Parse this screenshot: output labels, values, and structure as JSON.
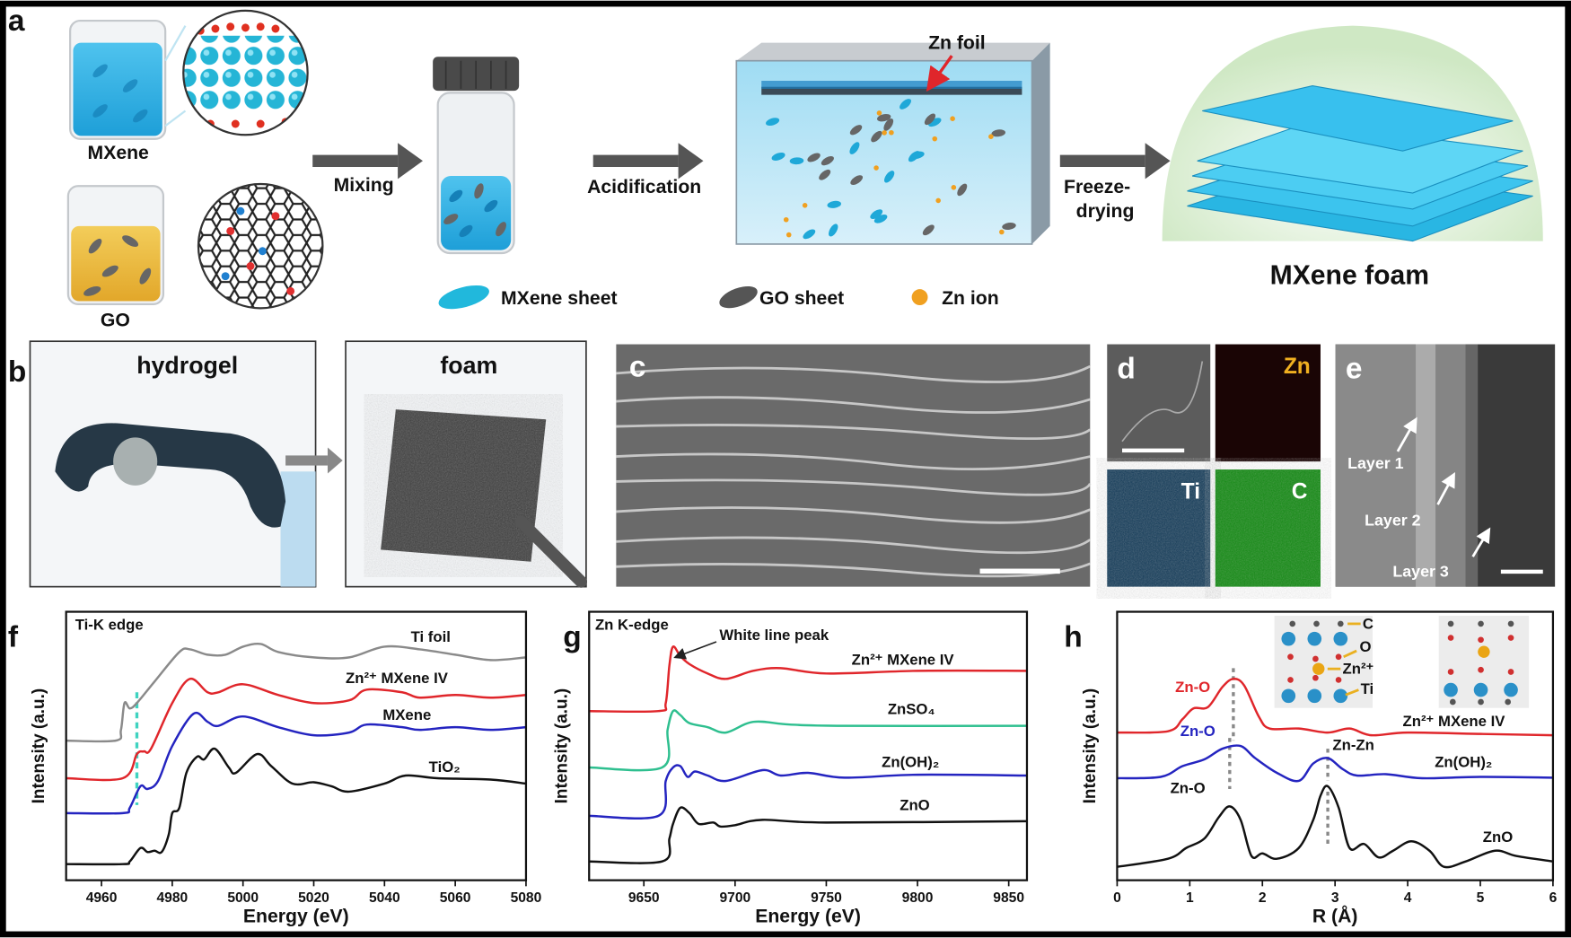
{
  "panel_labels": {
    "a": "a",
    "b": "b",
    "c": "c",
    "d": "d",
    "e": "e",
    "f": "f",
    "g": "g",
    "h": "h"
  },
  "scheme": {
    "mxene_label": "MXene",
    "go_label": "GO",
    "mixing": "Mixing",
    "acidification": "Acidification",
    "zn_foil": "Zn foil",
    "freeze_line1": "Freeze-",
    "freeze_line2": "drying",
    "foam_label": "MXene foam",
    "legend": [
      {
        "label": "MXene sheet",
        "color": "#21b8dc"
      },
      {
        "label": "GO sheet",
        "color": "#555555"
      },
      {
        "label": "Zn ion",
        "color": "#f0a020"
      }
    ]
  },
  "photos": {
    "hydrogel": "hydrogel",
    "foam": "foam"
  },
  "eds": {
    "zn": "Zn",
    "ti": "Ti",
    "c": "C",
    "zn_color": "#f0b020",
    "ti_color": "#1f6f9a",
    "c_color": "#22aa22"
  },
  "hrtem": {
    "layers": [
      "Layer 1",
      "Layer 2",
      "Layer 3"
    ]
  },
  "inset": {
    "labels": [
      "C",
      "O",
      "Zn²⁺",
      "Ti"
    ]
  },
  "chart_data": [
    {
      "id": "f",
      "type": "line",
      "title": "Ti-K edge",
      "xlabel": "Energy (eV)",
      "ylabel": "Intensity (a.u.)",
      "xlim": [
        4950,
        5080
      ],
      "xticks": [
        4960,
        4980,
        5000,
        5020,
        5040,
        5060,
        5080
      ],
      "yticks": "none",
      "grid": false,
      "reference_line": {
        "x": 4970,
        "color": "#3fd3c0",
        "style": "dashed"
      },
      "series": [
        {
          "name": "Ti foil",
          "color": "#8a8a8a",
          "points": [
            [
              4950,
              5.2
            ],
            [
              4964,
              5.2
            ],
            [
              4965.5,
              5.6
            ],
            [
              4966.5,
              6.6
            ],
            [
              4968,
              6.4
            ],
            [
              4970,
              6.6
            ],
            [
              4975,
              7.4
            ],
            [
              4982,
              8.5
            ],
            [
              4985,
              8.6
            ],
            [
              4990,
              8.4
            ],
            [
              4995,
              8.4
            ],
            [
              5000,
              8.7
            ],
            [
              5005,
              8.8
            ],
            [
              5010,
              8.5
            ],
            [
              5020,
              8.3
            ],
            [
              5030,
              8.3
            ],
            [
              5040,
              8.7
            ],
            [
              5050,
              8.6
            ],
            [
              5060,
              8.4
            ],
            [
              5070,
              8.2
            ],
            [
              5080,
              8.3
            ]
          ]
        },
        {
          "name": "Zn²⁺ MXene IV",
          "color": "#e0262b",
          "points": [
            [
              4950,
              3.8
            ],
            [
              4966,
              3.8
            ],
            [
              4970,
              4.7
            ],
            [
              4972,
              4.8
            ],
            [
              4974,
              4.9
            ],
            [
              4980,
              6.6
            ],
            [
              4985,
              7.5
            ],
            [
              4990,
              7.0
            ],
            [
              4993,
              7.0
            ],
            [
              5000,
              7.3
            ],
            [
              5010,
              6.9
            ],
            [
              5020,
              6.6
            ],
            [
              5030,
              6.7
            ],
            [
              5035,
              7.1
            ],
            [
              5045,
              7.0
            ],
            [
              5050,
              6.8
            ],
            [
              5060,
              6.9
            ],
            [
              5070,
              6.8
            ],
            [
              5080,
              6.9
            ]
          ]
        },
        {
          "name": "MXene",
          "color": "#2424c0",
          "points": [
            [
              4950,
              2.5
            ],
            [
              4966,
              2.5
            ],
            [
              4968,
              2.7
            ],
            [
              4971,
              3.5
            ],
            [
              4973,
              3.4
            ],
            [
              4976,
              3.7
            ],
            [
              4980,
              5.0
            ],
            [
              4986,
              6.2
            ],
            [
              4990,
              5.9
            ],
            [
              4993,
              5.75
            ],
            [
              5000,
              6.1
            ],
            [
              5010,
              5.7
            ],
            [
              5020,
              5.4
            ],
            [
              5030,
              5.5
            ],
            [
              5035,
              5.8
            ],
            [
              5045,
              5.7
            ],
            [
              5050,
              5.6
            ],
            [
              5060,
              5.7
            ],
            [
              5070,
              5.6
            ],
            [
              5080,
              5.7
            ]
          ]
        },
        {
          "name": "TiO₂",
          "color": "#111111",
          "points": [
            [
              4950,
              0.6
            ],
            [
              4966,
              0.6
            ],
            [
              4968,
              0.7
            ],
            [
              4971,
              1.2
            ],
            [
              4973,
              1.05
            ],
            [
              4975,
              1.1
            ],
            [
              4977,
              1.05
            ],
            [
              4979,
              1.7
            ],
            [
              4980,
              2.5
            ],
            [
              4982,
              2.7
            ],
            [
              4984,
              4.0
            ],
            [
              4987,
              4.6
            ],
            [
              4989,
              4.5
            ],
            [
              4992,
              4.9
            ],
            [
              4996,
              4.2
            ],
            [
              4998,
              4.0
            ],
            [
              5004,
              4.7
            ],
            [
              5008,
              4.25
            ],
            [
              5014,
              3.6
            ],
            [
              5020,
              3.65
            ],
            [
              5025,
              3.5
            ],
            [
              5030,
              3.3
            ],
            [
              5040,
              3.6
            ],
            [
              5046,
              3.9
            ],
            [
              5055,
              3.8
            ],
            [
              5070,
              3.75
            ],
            [
              5080,
              3.6
            ]
          ]
        }
      ]
    },
    {
      "id": "g",
      "type": "line",
      "title": "Zn K-edge",
      "annotation": "White line peak",
      "xlabel": "Energy (eV)",
      "ylabel": "Intensity (a.u.)",
      "xlim": [
        9620,
        9860
      ],
      "xticks": [
        9650,
        9700,
        9750,
        9800,
        9850
      ],
      "yticks": "none",
      "grid": false,
      "series": [
        {
          "name": "Zn²⁺ MXene IV",
          "color": "#e0262b",
          "points": [
            [
              9620,
              6.3
            ],
            [
              9658,
              6.3
            ],
            [
              9662,
              6.6
            ],
            [
              9664,
              8.0
            ],
            [
              9666,
              8.7
            ],
            [
              9670,
              8.35
            ],
            [
              9675,
              8.05
            ],
            [
              9685,
              7.7
            ],
            [
              9695,
              7.5
            ],
            [
              9710,
              7.8
            ],
            [
              9725,
              7.9
            ],
            [
              9750,
              7.7
            ],
            [
              9800,
              7.8
            ],
            [
              9860,
              7.8
            ]
          ]
        },
        {
          "name": "ZnSO₄",
          "color": "#2ebf8f",
          "points": [
            [
              9620,
              4.2
            ],
            [
              9660,
              4.2
            ],
            [
              9663,
              5.6
            ],
            [
              9666,
              6.3
            ],
            [
              9670,
              6.15
            ],
            [
              9675,
              5.85
            ],
            [
              9685,
              5.7
            ],
            [
              9695,
              5.5
            ],
            [
              9710,
              5.9
            ],
            [
              9730,
              5.8
            ],
            [
              9760,
              5.75
            ],
            [
              9860,
              5.75
            ]
          ]
        },
        {
          "name": "Zn(OH)₂",
          "color": "#2424c0",
          "points": [
            [
              9620,
              2.4
            ],
            [
              9658,
              2.4
            ],
            [
              9662,
              3.7
            ],
            [
              9666,
              4.2
            ],
            [
              9670,
              4.25
            ],
            [
              9674,
              3.85
            ],
            [
              9678,
              4.05
            ],
            [
              9685,
              3.9
            ],
            [
              9695,
              3.7
            ],
            [
              9715,
              4.1
            ],
            [
              9725,
              3.9
            ],
            [
              9740,
              4.0
            ],
            [
              9760,
              3.82
            ],
            [
              9800,
              3.93
            ],
            [
              9860,
              3.9
            ]
          ]
        },
        {
          "name": "ZnO",
          "color": "#111111",
          "points": [
            [
              9620,
              0.7
            ],
            [
              9660,
              0.7
            ],
            [
              9664,
              1.55
            ],
            [
              9666,
              2.1
            ],
            [
              9670,
              2.7
            ],
            [
              9675,
              2.5
            ],
            [
              9680,
              2.1
            ],
            [
              9688,
              2.15
            ],
            [
              9692,
              2.0
            ],
            [
              9700,
              2.05
            ],
            [
              9715,
              2.25
            ],
            [
              9750,
              2.15
            ],
            [
              9860,
              2.2
            ]
          ]
        }
      ]
    },
    {
      "id": "h",
      "type": "line",
      "xlabel": "R (Å)",
      "ylabel": "Intensity (a.u.)",
      "xlim": [
        0,
        6
      ],
      "xticks": [
        0,
        1,
        2,
        3,
        4,
        5,
        6
      ],
      "yticks": "none",
      "grid": false,
      "annotations": [
        {
          "text": "Zn-O",
          "color": "#e0262b"
        },
        {
          "text": "Zn-O",
          "color": "#2424c0"
        },
        {
          "text": "Zn-O",
          "color": "#111111"
        },
        {
          "text": "Zn-Zn",
          "color": "#111111"
        }
      ],
      "reference_lines": [
        {
          "x": 1.6
        },
        {
          "x": 1.55
        },
        {
          "x": 2.9
        }
      ],
      "series": [
        {
          "name": "Zn²⁺ MXene IV",
          "color": "#e0262b",
          "points": [
            [
              0,
              5.5
            ],
            [
              0.7,
              5.55
            ],
            [
              0.9,
              6.0
            ],
            [
              1.05,
              6.4
            ],
            [
              1.25,
              6.45
            ],
            [
              1.45,
              7.2
            ],
            [
              1.6,
              7.5
            ],
            [
              1.75,
              7.25
            ],
            [
              1.95,
              6.1
            ],
            [
              2.1,
              5.65
            ],
            [
              2.5,
              5.65
            ],
            [
              2.9,
              5.5
            ],
            [
              3.2,
              5.65
            ],
            [
              3.5,
              5.4
            ],
            [
              4,
              5.5
            ],
            [
              5,
              5.45
            ],
            [
              6,
              5.4
            ]
          ]
        },
        {
          "name": "Zn(OH)₂",
          "color": "#2424c0",
          "points": [
            [
              0,
              3.8
            ],
            [
              0.6,
              3.85
            ],
            [
              0.9,
              4.25
            ],
            [
              1.2,
              4.5
            ],
            [
              1.45,
              4.9
            ],
            [
              1.7,
              5.0
            ],
            [
              1.9,
              4.55
            ],
            [
              2.2,
              4.0
            ],
            [
              2.5,
              3.7
            ],
            [
              2.7,
              4.35
            ],
            [
              2.9,
              4.55
            ],
            [
              3.1,
              4.15
            ],
            [
              3.3,
              3.9
            ],
            [
              3.7,
              3.95
            ],
            [
              4.2,
              3.8
            ],
            [
              5,
              3.85
            ],
            [
              6,
              3.82
            ]
          ]
        },
        {
          "name": "ZnO",
          "color": "#111111",
          "points": [
            [
              0,
              0.5
            ],
            [
              0.7,
              0.8
            ],
            [
              0.95,
              1.2
            ],
            [
              1.2,
              1.55
            ],
            [
              1.4,
              2.35
            ],
            [
              1.55,
              2.75
            ],
            [
              1.7,
              2.25
            ],
            [
              1.85,
              0.9
            ],
            [
              2.0,
              1.0
            ],
            [
              2.2,
              0.8
            ],
            [
              2.5,
              1.2
            ],
            [
              2.7,
              2.25
            ],
            [
              2.8,
              3.15
            ],
            [
              2.9,
              3.5
            ],
            [
              3.05,
              2.7
            ],
            [
              3.2,
              1.2
            ],
            [
              3.4,
              1.35
            ],
            [
              3.6,
              0.85
            ],
            [
              3.8,
              1.1
            ],
            [
              4.05,
              1.45
            ],
            [
              4.3,
              1.1
            ],
            [
              4.5,
              0.5
            ],
            [
              4.8,
              0.7
            ],
            [
              5.2,
              1.1
            ],
            [
              5.5,
              0.9
            ],
            [
              6,
              0.7
            ]
          ]
        }
      ]
    }
  ]
}
